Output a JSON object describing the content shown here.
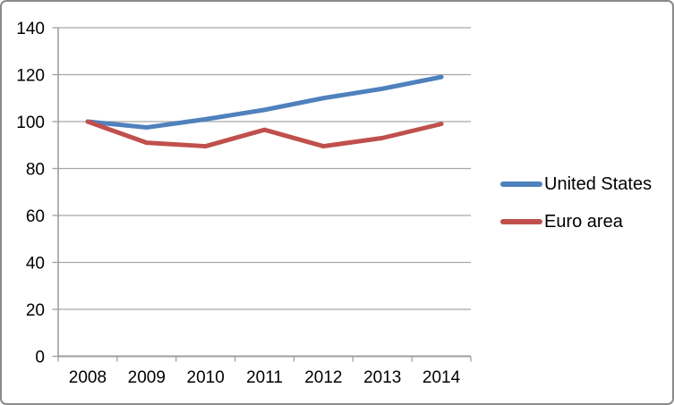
{
  "chart_data": {
    "type": "line",
    "title": "",
    "xlabel": "",
    "ylabel": "",
    "categories": [
      "2008",
      "2009",
      "2010",
      "2011",
      "2012",
      "2013",
      "2014"
    ],
    "series": [
      {
        "name": "United States",
        "color": "#4F81BD",
        "values": [
          100,
          97.5,
          101,
          105,
          110,
          114,
          119
        ]
      },
      {
        "name": "Euro area",
        "color": "#C0504D",
        "values": [
          100,
          91,
          89.5,
          96.5,
          89.5,
          93,
          99
        ]
      }
    ],
    "ylim": [
      0,
      140
    ],
    "yticks": [
      0,
      20,
      40,
      60,
      80,
      100,
      120,
      140
    ],
    "grid": true,
    "legend_position": "right"
  },
  "colors": {
    "background": "#ffffff",
    "frame_border": "#8a8a8a",
    "gridline": "#a8a8a8",
    "axis": "#9e9e9e",
    "tick": "#9e9e9e",
    "text": "#000000"
  }
}
